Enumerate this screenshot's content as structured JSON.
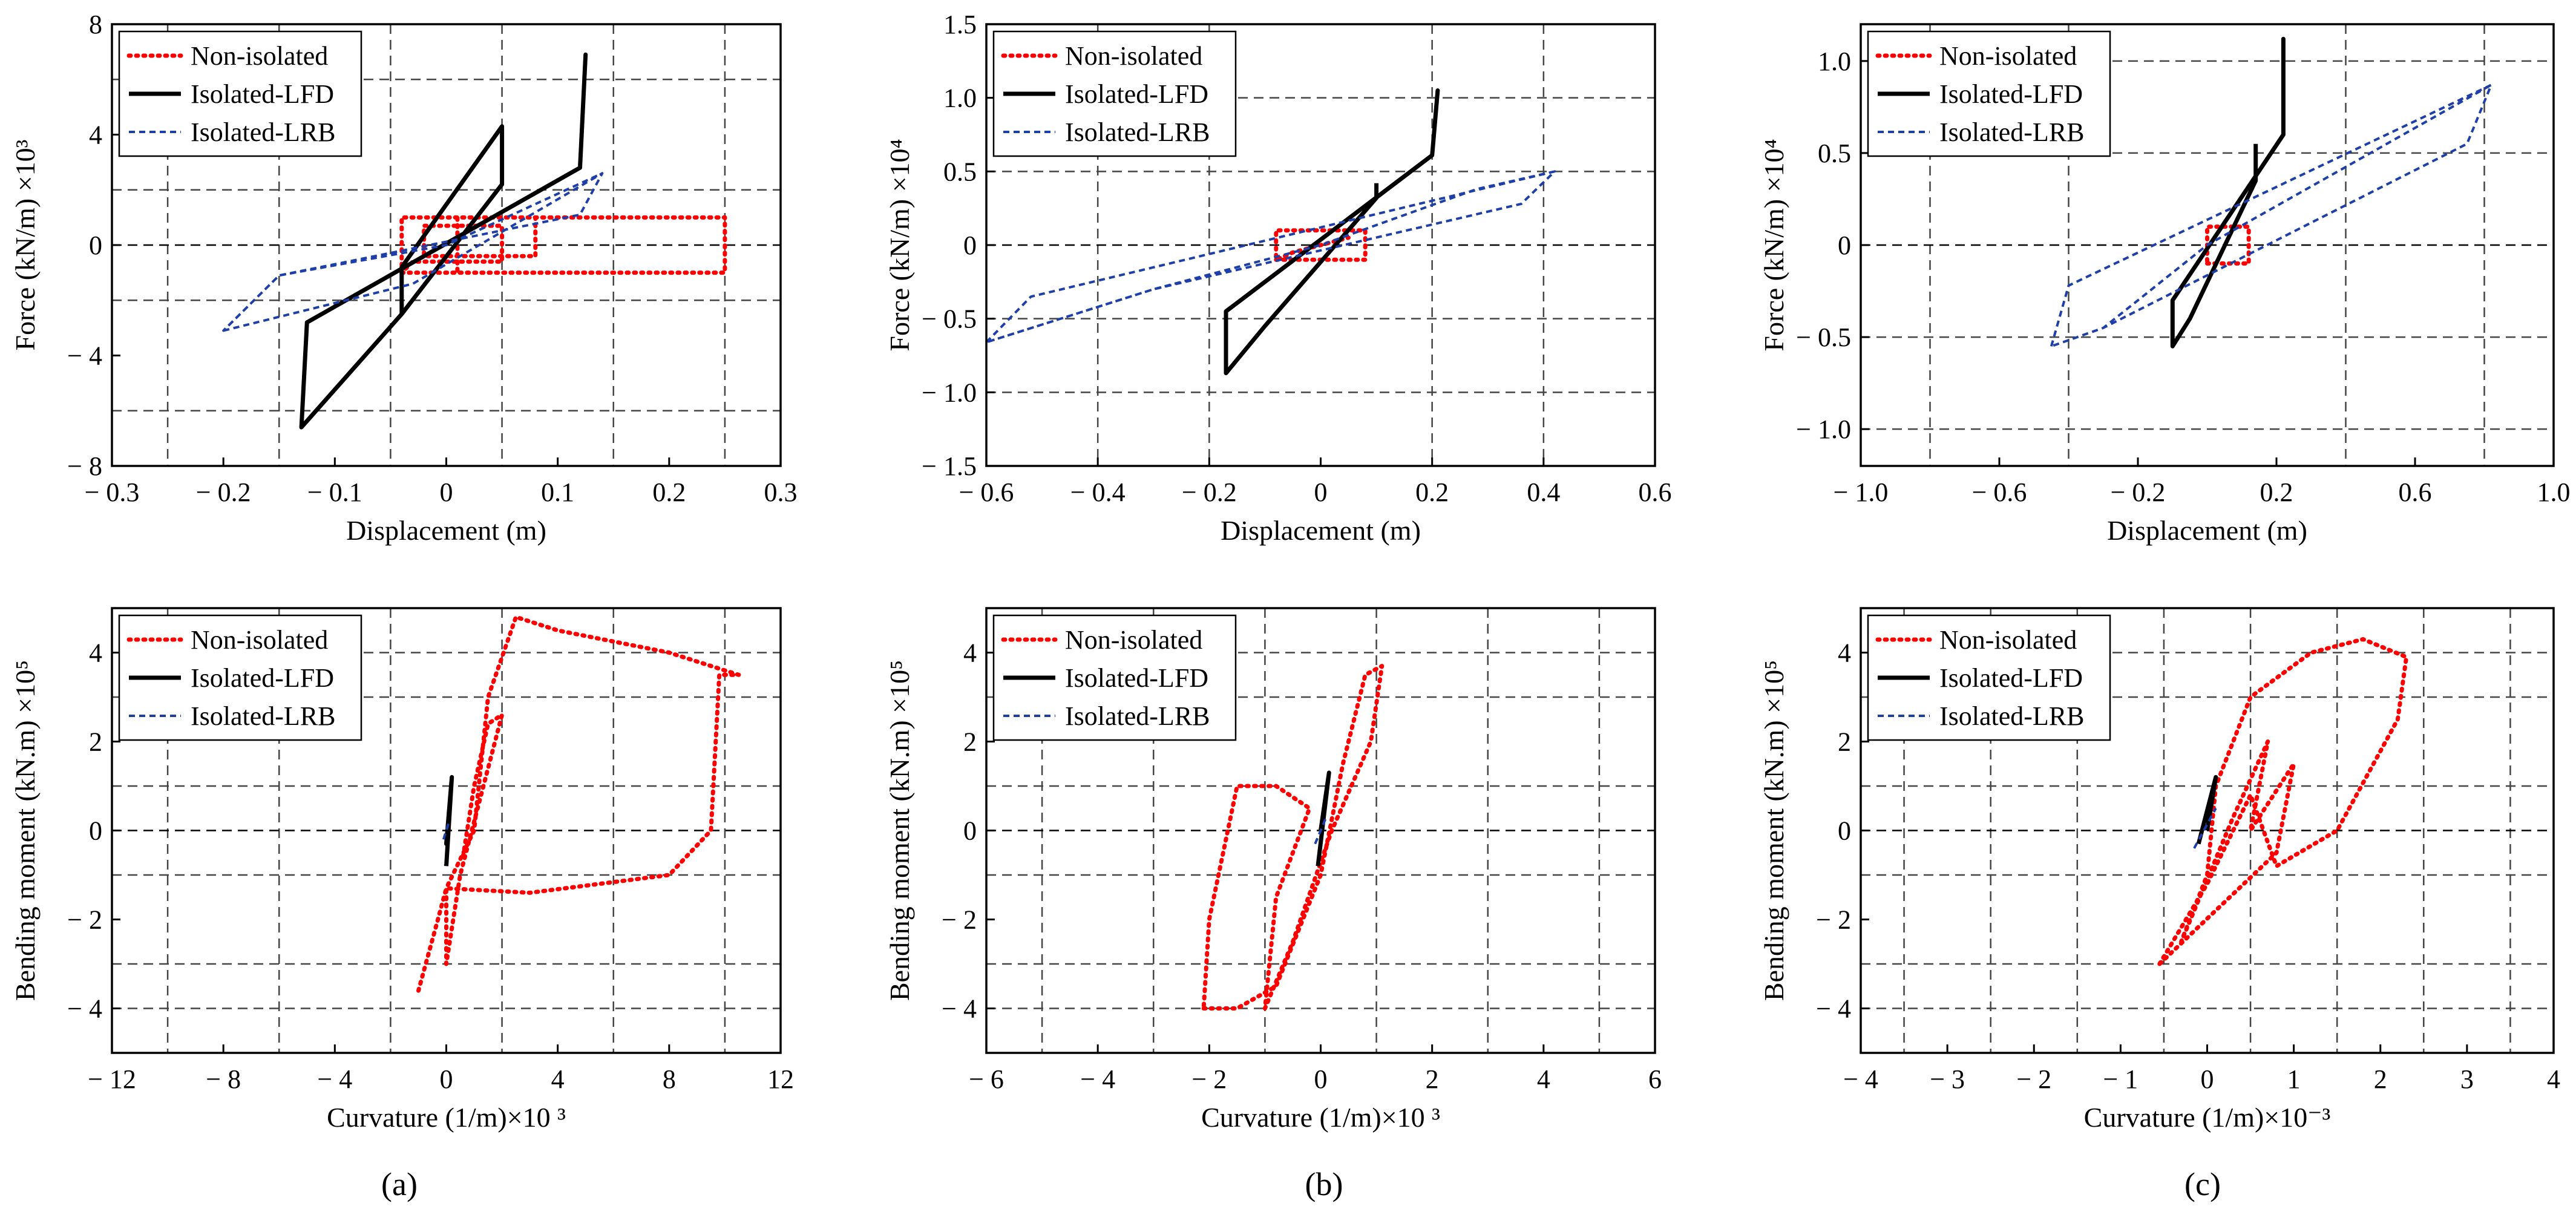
{
  "figure": {
    "panel_labels": [
      "(a)",
      "(b)",
      "(c)"
    ]
  },
  "colors": {
    "non_isolated": "#ff0000",
    "isolated_lfd": "#000000",
    "isolated_lrb": "#1f3fa8",
    "grid": "#444444",
    "frame": "#000000"
  },
  "chart_data": [
    {
      "id": "a-top",
      "type": "line",
      "title": "",
      "xlabel": "Displacement (m)",
      "ylabel": "Force (kN/m) ×10³",
      "xlim": [
        -0.3,
        0.3
      ],
      "ylim": [
        -8,
        8
      ],
      "xticks": [
        -0.3,
        -0.2,
        -0.1,
        0,
        0.1,
        0.2,
        0.3
      ],
      "xtick_labels": [
        "− 0.3",
        "− 0.2",
        "− 0.1",
        "0",
        "0.1",
        "0.2",
        "0.3"
      ],
      "yticks": [
        -8,
        -4,
        0,
        4,
        8
      ],
      "ytick_labels": [
        "− 8",
        "− 4",
        "0",
        "4",
        "8"
      ],
      "gridlines_x": [
        -0.25,
        -0.15,
        -0.05,
        0.05,
        0.15,
        0.25
      ],
      "gridlines_y": [
        -6,
        -2,
        2,
        6
      ],
      "legend": [
        "Non-isolated",
        "Isolated-LFD",
        "Isolated-LRB"
      ],
      "legend_position": "top-left",
      "series": [
        {
          "name": "Non-isolated",
          "style": "red-dotted",
          "points": [
            [
              -0.04,
              -1.0
            ],
            [
              0.25,
              -1.0
            ],
            [
              0.25,
              1.0
            ],
            [
              -0.04,
              1.0
            ],
            [
              -0.04,
              -1.0
            ],
            [
              -0.03,
              -0.6
            ],
            [
              0.05,
              -0.6
            ],
            [
              0.05,
              0.7
            ],
            [
              -0.02,
              0.7
            ],
            [
              -0.02,
              -0.4
            ],
            [
              0.08,
              -0.4
            ],
            [
              0.08,
              1.0
            ],
            [
              0.01,
              1.0
            ],
            [
              0.01,
              -1.0
            ]
          ]
        },
        {
          "name": "Isolated-LFD",
          "style": "black-solid",
          "points": [
            [
              -0.13,
              -6.6
            ],
            [
              -0.125,
              -2.8
            ],
            [
              0.12,
              2.8
            ],
            [
              0.125,
              6.9
            ],
            [
              0.12,
              2.8
            ],
            [
              -0.125,
              -2.8
            ],
            [
              -0.13,
              -6.6
            ],
            [
              -0.04,
              -2.5
            ],
            [
              0.05,
              2.2
            ],
            [
              0.05,
              4.3
            ],
            [
              -0.04,
              -0.8
            ],
            [
              -0.04,
              -2.5
            ]
          ]
        },
        {
          "name": "Isolated-LRB",
          "style": "blue-dashed",
          "points": [
            [
              -0.2,
              -3.1
            ],
            [
              -0.03,
              -1.4
            ],
            [
              0.14,
              2.6
            ],
            [
              0.12,
              1.1
            ],
            [
              -0.15,
              -1.1
            ],
            [
              -0.2,
              -3.1
            ],
            [
              -0.15,
              -1.1
            ],
            [
              0.0,
              0.0
            ],
            [
              0.14,
              2.6
            ]
          ]
        }
      ]
    },
    {
      "id": "b-top",
      "type": "line",
      "title": "",
      "xlabel": "Displacement (m)",
      "ylabel": "Force (kN/m) ×10⁴",
      "xlim": [
        -0.6,
        0.6
      ],
      "ylim": [
        -1.5,
        1.5
      ],
      "xticks": [
        -0.6,
        -0.4,
        -0.2,
        0,
        0.2,
        0.4,
        0.6
      ],
      "xtick_labels": [
        "− 0.6",
        "− 0.4",
        "− 0.2",
        "0",
        "0.2",
        "0.4",
        "0.6"
      ],
      "yticks": [
        -1.5,
        -1.0,
        -0.5,
        0,
        0.5,
        1.0,
        1.5
      ],
      "ytick_labels": [
        "− 1.5",
        "− 1.0",
        "− 0.5",
        "0",
        "0.5",
        "1.0",
        "1.5"
      ],
      "gridlines_x": [
        -0.4,
        -0.2,
        0.2,
        0.4
      ],
      "gridlines_y": [
        -1.0,
        -0.5,
        0.5,
        1.0
      ],
      "legend": [
        "Non-isolated",
        "Isolated-LFD",
        "Isolated-LRB"
      ],
      "legend_position": "top-left",
      "series": [
        {
          "name": "Non-isolated",
          "style": "red-dotted",
          "points": [
            [
              -0.08,
              -0.1
            ],
            [
              0.08,
              -0.1
            ],
            [
              0.08,
              0.1
            ],
            [
              -0.08,
              0.1
            ],
            [
              -0.08,
              -0.1
            ],
            [
              -0.05,
              -0.05
            ],
            [
              0.05,
              0.05
            ]
          ]
        },
        {
          "name": "Isolated-LFD",
          "style": "black-solid",
          "points": [
            [
              -0.17,
              -0.87
            ],
            [
              -0.17,
              -0.45
            ],
            [
              0.2,
              0.61
            ],
            [
              0.21,
              1.05
            ],
            [
              0.2,
              0.61
            ],
            [
              -0.17,
              -0.45
            ],
            [
              -0.17,
              -0.87
            ],
            [
              -0.1,
              -0.55
            ],
            [
              0.1,
              0.32
            ],
            [
              0.1,
              0.42
            ]
          ]
        },
        {
          "name": "Isolated-LRB",
          "style": "blue-dashed",
          "points": [
            [
              -0.6,
              -0.66
            ],
            [
              -0.52,
              -0.35
            ],
            [
              0.42,
              0.5
            ],
            [
              0.36,
              0.28
            ],
            [
              -0.3,
              -0.3
            ],
            [
              -0.6,
              -0.66
            ],
            [
              -0.3,
              -0.3
            ],
            [
              0.0,
              0.0
            ],
            [
              0.28,
              0.38
            ],
            [
              0.42,
              0.5
            ]
          ]
        }
      ]
    },
    {
      "id": "c-top",
      "type": "line",
      "title": "",
      "xlabel": "Displacement (m)",
      "ylabel": "Force (kN/m) ×10⁴",
      "xlim": [
        -1.0,
        1.0
      ],
      "ylim": [
        -1.2,
        1.2
      ],
      "xticks": [
        -1.0,
        -0.6,
        -0.2,
        0.2,
        0.6,
        1.0
      ],
      "xtick_labels": [
        "− 1.0",
        "− 0.6",
        "− 0.2",
        "0.2",
        "0.6",
        "1.0"
      ],
      "yticks": [
        -1.0,
        -0.5,
        0,
        0.5,
        1.0
      ],
      "ytick_labels": [
        "− 1.0",
        "− 0.5",
        "0",
        "0.5",
        "1.0"
      ],
      "gridlines_x": [
        -0.8,
        -0.4,
        0.4,
        0.8
      ],
      "gridlines_y": [
        -1.0,
        -0.5,
        0.5,
        1.0
      ],
      "legend": [
        "Non-isolated",
        "Isolated-LFD",
        "Isolated-LRB"
      ],
      "legend_position": "top-left",
      "series": [
        {
          "name": "Non-isolated",
          "style": "red-dotted",
          "points": [
            [
              0.0,
              -0.1
            ],
            [
              0.12,
              -0.1
            ],
            [
              0.12,
              0.1
            ],
            [
              0.0,
              0.1
            ],
            [
              0.0,
              -0.1
            ]
          ]
        },
        {
          "name": "Isolated-LFD",
          "style": "black-solid",
          "points": [
            [
              -0.1,
              -0.55
            ],
            [
              -0.1,
              -0.3
            ],
            [
              0.22,
              0.6
            ],
            [
              0.22,
              1.12
            ],
            [
              0.22,
              0.6
            ],
            [
              -0.1,
              -0.3
            ],
            [
              -0.1,
              -0.55
            ],
            [
              -0.05,
              -0.4
            ],
            [
              0.14,
              0.35
            ],
            [
              0.14,
              0.55
            ]
          ]
        },
        {
          "name": "Isolated-LRB",
          "style": "blue-dashed",
          "points": [
            [
              -0.45,
              -0.55
            ],
            [
              -0.4,
              -0.22
            ],
            [
              0.82,
              0.87
            ],
            [
              0.75,
              0.55
            ],
            [
              -0.3,
              -0.45
            ],
            [
              -0.45,
              -0.55
            ],
            [
              -0.3,
              -0.45
            ],
            [
              0.0,
              0.0
            ],
            [
              0.82,
              0.87
            ]
          ]
        }
      ]
    },
    {
      "id": "a-bottom",
      "type": "line",
      "title": "",
      "xlabel": "Curvature (1/m)×10 ³",
      "ylabel": "Bending moment (kN.m) ×10⁵",
      "xlim": [
        -12,
        12
      ],
      "ylim": [
        -5,
        5
      ],
      "xticks": [
        -12,
        -8,
        -4,
        0,
        4,
        8,
        12
      ],
      "xtick_labels": [
        "− 12",
        "− 8",
        "− 4",
        "0",
        "4",
        "8",
        "12"
      ],
      "yticks": [
        -4,
        -2,
        0,
        2,
        4
      ],
      "ytick_labels": [
        "− 4",
        "− 2",
        "0",
        "2",
        "4"
      ],
      "gridlines_x": [
        -10,
        -6,
        -2,
        2,
        6,
        10
      ],
      "gridlines_y": [
        -4,
        -3,
        -1,
        1,
        3,
        4
      ],
      "legend": [
        "Non-isolated",
        "Isolated-LFD",
        "Isolated-LRB"
      ],
      "legend_position": "top-left",
      "series": [
        {
          "name": "Non-isolated",
          "style": "red-dotted",
          "points": [
            [
              -1.0,
              -3.6
            ],
            [
              -0.3,
              -2.0
            ],
            [
              0.0,
              -1.3
            ],
            [
              3.0,
              -1.4
            ],
            [
              8.0,
              -1.0
            ],
            [
              9.5,
              0.0
            ],
            [
              9.8,
              3.5
            ],
            [
              10.5,
              3.5
            ],
            [
              8.0,
              4.0
            ],
            [
              4.0,
              4.5
            ],
            [
              2.5,
              4.8
            ],
            [
              1.5,
              3.0
            ],
            [
              1.0,
              0.0
            ],
            [
              0.0,
              -1.3
            ],
            [
              0.0,
              -3.0
            ],
            [
              0.5,
              -1.0
            ],
            [
              2.0,
              2.6
            ],
            [
              1.5,
              2.4
            ],
            [
              1.0,
              1.0
            ],
            [
              0.6,
              -0.6
            ]
          ]
        },
        {
          "name": "Isolated-LFD",
          "style": "black-solid",
          "points": [
            [
              0.0,
              -0.8
            ],
            [
              0.2,
              1.2
            ],
            [
              0.0,
              -0.3
            ],
            [
              0.1,
              0.4
            ]
          ]
        },
        {
          "name": "Isolated-LRB",
          "style": "blue-dashed",
          "points": [
            [
              -0.1,
              -0.2
            ],
            [
              0.1,
              0.2
            ]
          ]
        }
      ]
    },
    {
      "id": "b-bottom",
      "type": "line",
      "title": "",
      "xlabel": "Curvature (1/m)×10 ³",
      "ylabel": "Bending moment (kN.m) ×10⁵",
      "xlim": [
        -6,
        6
      ],
      "ylim": [
        -5,
        5
      ],
      "xticks": [
        -6,
        -4,
        -2,
        0,
        2,
        4,
        6
      ],
      "xtick_labels": [
        "− 6",
        "− 4",
        "− 2",
        "0",
        "2",
        "4",
        "6"
      ],
      "yticks": [
        -4,
        -2,
        0,
        2,
        4
      ],
      "ytick_labels": [
        "− 4",
        "− 2",
        "0",
        "2",
        "4"
      ],
      "gridlines_x": [
        -5,
        -3,
        -1,
        1,
        3,
        5
      ],
      "gridlines_y": [
        -4,
        -3,
        -1,
        1,
        3,
        4
      ],
      "legend": [
        "Non-isolated",
        "Isolated-LFD",
        "Isolated-LRB"
      ],
      "legend_position": "top-left",
      "series": [
        {
          "name": "Non-isolated",
          "style": "red-dotted",
          "points": [
            [
              -2.1,
              -4.0
            ],
            [
              -1.5,
              -4.0
            ],
            [
              -0.8,
              -3.5
            ],
            [
              0.0,
              -1.0
            ],
            [
              0.4,
              1.5
            ],
            [
              0.8,
              3.5
            ],
            [
              1.1,
              3.7
            ],
            [
              0.9,
              2.0
            ],
            [
              0.2,
              0.0
            ],
            [
              -0.5,
              -2.5
            ],
            [
              -1.0,
              -4.0
            ],
            [
              -0.8,
              -1.5
            ],
            [
              -0.2,
              0.5
            ],
            [
              -0.8,
              1.0
            ],
            [
              -1.5,
              1.0
            ],
            [
              -2.0,
              -2.0
            ],
            [
              -2.1,
              -4.0
            ]
          ]
        },
        {
          "name": "Isolated-LFD",
          "style": "black-solid",
          "points": [
            [
              -0.05,
              -0.8
            ],
            [
              0.15,
              1.3
            ],
            [
              0.0,
              0.0
            ]
          ]
        },
        {
          "name": "Isolated-LRB",
          "style": "blue-dashed",
          "points": [
            [
              -0.1,
              -0.3
            ],
            [
              0.1,
              0.3
            ]
          ]
        }
      ]
    },
    {
      "id": "c-bottom",
      "type": "line",
      "title": "",
      "xlabel": "Curvature (1/m)×10⁻³",
      "ylabel": "Bending moment (kN.m) ×10⁵",
      "xlim": [
        -4,
        4
      ],
      "ylim": [
        -5,
        5
      ],
      "xticks": [
        -4,
        -3,
        -2,
        -1,
        0,
        1,
        2,
        3,
        4
      ],
      "xtick_labels": [
        "− 4",
        "− 3",
        "− 2",
        "− 1",
        "0",
        "1",
        "2",
        "3",
        "4"
      ],
      "yticks": [
        -4,
        -2,
        0,
        2,
        4
      ],
      "ytick_labels": [
        "− 4",
        "− 2",
        "0",
        "2",
        "4"
      ],
      "gridlines_x": [
        -3.5,
        -2.5,
        -1.5,
        -0.5,
        0.5,
        1.5,
        2.5,
        3.5
      ],
      "gridlines_y": [
        -4,
        -3,
        -1,
        1,
        3,
        4
      ],
      "legend": [
        "Non-isolated",
        "Isolated-LFD",
        "Isolated-LRB"
      ],
      "legend_position": "top-left",
      "series": [
        {
          "name": "Non-isolated",
          "style": "red-dotted",
          "points": [
            [
              -0.55,
              -3.0
            ],
            [
              0.0,
              -1.2
            ],
            [
              0.5,
              0.8
            ],
            [
              0.8,
              -0.8
            ],
            [
              1.5,
              0.0
            ],
            [
              2.2,
              2.5
            ],
            [
              2.3,
              3.9
            ],
            [
              1.8,
              4.3
            ],
            [
              1.2,
              4.0
            ],
            [
              0.5,
              3.0
            ],
            [
              0.1,
              1.0
            ],
            [
              0.0,
              -1.0
            ],
            [
              -0.3,
              -2.5
            ],
            [
              0.3,
              0.3
            ],
            [
              0.7,
              2.0
            ],
            [
              0.5,
              0.0
            ],
            [
              1.0,
              1.5
            ],
            [
              0.8,
              -0.5
            ],
            [
              -0.55,
              -3.0
            ]
          ]
        },
        {
          "name": "Isolated-LFD",
          "style": "black-solid",
          "points": [
            [
              -0.1,
              -0.3
            ],
            [
              0.1,
              1.2
            ],
            [
              0.0,
              0.0
            ]
          ]
        },
        {
          "name": "Isolated-LRB",
          "style": "blue-dashed",
          "points": [
            [
              -0.15,
              -0.4
            ],
            [
              0.1,
              0.5
            ]
          ]
        }
      ]
    }
  ]
}
